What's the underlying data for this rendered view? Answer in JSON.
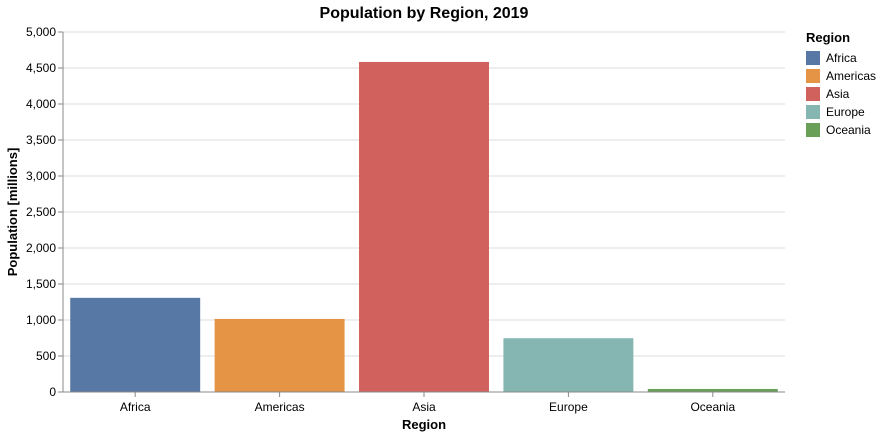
{
  "chart_data": {
    "type": "bar",
    "title": "Population by Region, 2019",
    "xlabel": "Region",
    "ylabel": "Population [millions]",
    "categories": [
      "Africa",
      "Americas",
      "Asia",
      "Europe",
      "Oceania"
    ],
    "values": [
      1308,
      1015,
      4584,
      747,
      42
    ],
    "colors": [
      "#5778a4",
      "#e49444",
      "#d1615d",
      "#85b6b2",
      "#6a9f58"
    ],
    "ylim": [
      0,
      5000
    ],
    "yticks": [
      0,
      500,
      1000,
      1500,
      2000,
      2500,
      3000,
      3500,
      4000,
      4500,
      5000
    ],
    "ytick_labels": [
      "0",
      "500",
      "1,000",
      "1,500",
      "2,000",
      "2,500",
      "3,000",
      "3,500",
      "4,000",
      "4,500",
      "5,000"
    ],
    "grid": true,
    "legend": {
      "title": "Region",
      "placement": "right",
      "entries": [
        "Africa",
        "Americas",
        "Asia",
        "Europe",
        "Oceania"
      ]
    }
  }
}
